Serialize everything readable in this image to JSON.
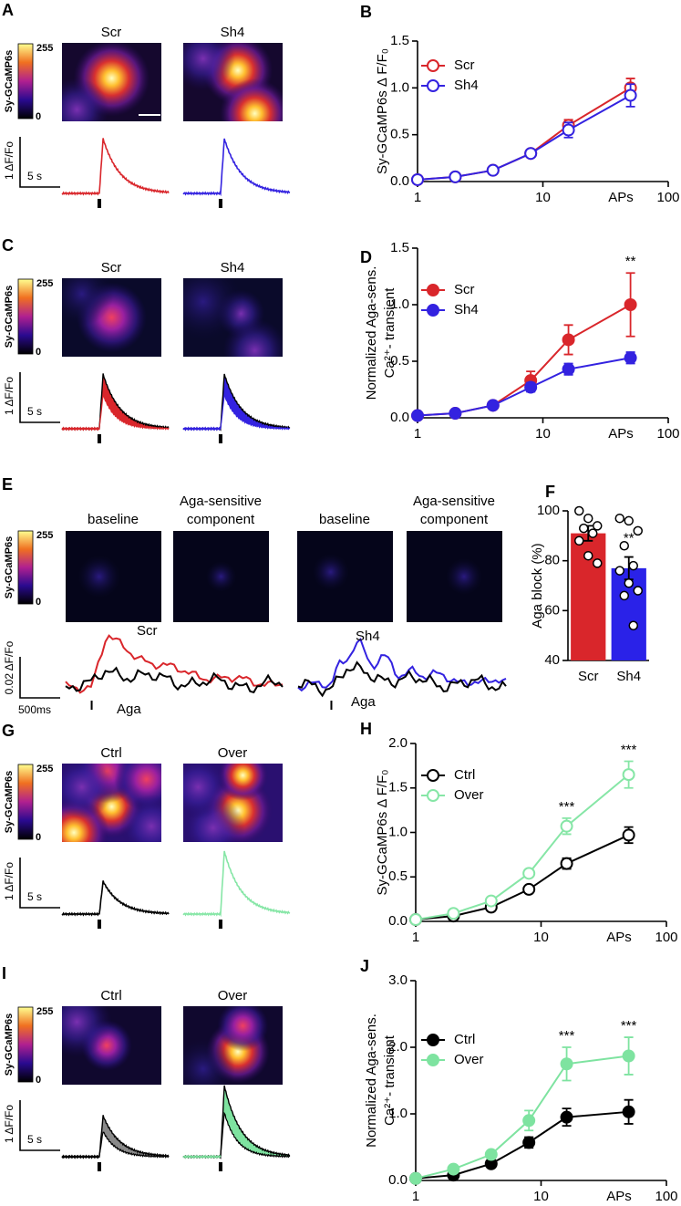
{
  "image_panels": [
    {
      "letter": "A",
      "titles": [
        "Scr",
        "Sh4"
      ],
      "colorbar": {
        "max": "255",
        "min": "0",
        "label": "Sy-GCaMP6s"
      },
      "scalebar": {
        "y": "1 ΔF/Fo",
        "x": "5 s"
      }
    },
    {
      "letter": "C",
      "titles": [
        "Scr",
        "Sh4"
      ],
      "colorbar": {
        "max": "255",
        "min": "0",
        "label": "Sy-GCaMP6s"
      },
      "scalebar": {
        "y": "1 ΔF/Fo",
        "x": "5 s"
      }
    },
    {
      "letter": "E",
      "titles": [
        "baseline",
        "Aga-sensitive component",
        "baseline",
        "Aga-sensitive component"
      ],
      "colorbar": {
        "max": "255",
        "min": "0",
        "label": "Sy-GCaMP6s"
      },
      "scalebar": {
        "y": "0.02 ΔF/Fo",
        "x": "500ms"
      },
      "trace_labels": [
        "Scr",
        "Aga",
        "Sh4",
        "Aga"
      ]
    },
    {
      "letter": "G",
      "titles": [
        "Ctrl",
        "Over"
      ],
      "colorbar": {
        "max": "255",
        "min": "0",
        "label": "Sy-GCaMP6s"
      },
      "scalebar": {
        "y": "1 ΔF/Fo",
        "x": "5 s"
      }
    },
    {
      "letter": "I",
      "titles": [
        "Ctrl",
        "Over"
      ],
      "colorbar": {
        "max": "255",
        "min": "0",
        "label": "Sy-GCaMP6s"
      },
      "scalebar": {
        "y": "1 ΔF/Fo",
        "x": "5 s"
      }
    }
  ],
  "chart_data": [
    {
      "panel": "B",
      "type": "line",
      "xscale": "log",
      "x": [
        1,
        2,
        4,
        8,
        16,
        50
      ],
      "xlim": [
        1,
        100
      ],
      "xticks": [
        1,
        10,
        100
      ],
      "xlabel": "APs",
      "ylabel": "Sy-GCaMP6s Δ F/F₀",
      "ylim": [
        0,
        1.5
      ],
      "yticks": [
        {
          "value": 0,
          "label": "0.0"
        },
        0.5,
        {
          "value": 1,
          "label": "1.0"
        },
        1.5
      ],
      "marker": "open",
      "series": [
        {
          "name": "Scr",
          "color": "#d9262b",
          "values": [
            0.02,
            0.05,
            0.12,
            0.3,
            0.6,
            1.0
          ],
          "errors": [
            0.01,
            0.01,
            0.02,
            0.03,
            0.06,
            0.1
          ]
        },
        {
          "name": "Sh4",
          "color": "#3322e0",
          "values": [
            0.02,
            0.05,
            0.12,
            0.3,
            0.55,
            0.92
          ],
          "errors": [
            0.01,
            0.01,
            0.02,
            0.03,
            0.08,
            0.12
          ]
        }
      ]
    },
    {
      "panel": "D",
      "type": "line",
      "xscale": "log",
      "x": [
        1,
        2,
        4,
        8,
        16,
        50
      ],
      "xlim": [
        1,
        100
      ],
      "xticks": [
        1,
        10,
        100
      ],
      "xlabel": "APs",
      "ylabel": [
        "Normalized Aga-sens.",
        "Ca²⁺- transient"
      ],
      "ylim": [
        0,
        1.5
      ],
      "yticks": [
        {
          "value": 0,
          "label": "0.0"
        },
        0.5,
        {
          "value": 1,
          "label": "1.0"
        },
        1.5
      ],
      "marker": "filled",
      "series": [
        {
          "name": "Scr",
          "color": "#d9262b",
          "values": [
            0.02,
            0.04,
            0.11,
            0.33,
            0.69,
            1.0
          ],
          "errors": [
            0.01,
            0.01,
            0.02,
            0.08,
            0.13,
            0.28
          ]
        },
        {
          "name": "Sh4",
          "color": "#3322e0",
          "values": [
            0.02,
            0.04,
            0.11,
            0.27,
            0.43,
            0.53
          ],
          "errors": [
            0.01,
            0.01,
            0.02,
            0.04,
            0.05,
            0.05
          ]
        }
      ],
      "annotations": [
        {
          "text": "**",
          "x": 50
        }
      ]
    },
    {
      "panel": "F",
      "type": "bar",
      "categories": [
        "Scr",
        "Sh4"
      ],
      "values": [
        91,
        77
      ],
      "errors": [
        3,
        4.5
      ],
      "colors": [
        "#d9262b",
        "#2a22e8"
      ],
      "points": [
        [
          100,
          97,
          94,
          93,
          91,
          88,
          82,
          79
        ],
        [
          97,
          96,
          92,
          86,
          78,
          76,
          71,
          68,
          66,
          54
        ]
      ],
      "ylabel": "Aga block (%)",
      "ylim": [
        40,
        100
      ],
      "yticks": [
        40,
        60,
        80,
        100
      ],
      "annotations": [
        {
          "text": "**",
          "x": "Sh4"
        }
      ]
    },
    {
      "panel": "H",
      "type": "line",
      "xscale": "log",
      "x": [
        1,
        2,
        4,
        8,
        16,
        50
      ],
      "xlim": [
        1,
        100
      ],
      "xticks": [
        1,
        10,
        100
      ],
      "xlabel": "APs",
      "ylabel": "Sy-GCaMP6s Δ F/F₀",
      "ylim": [
        0,
        2
      ],
      "yticks": [
        {
          "value": 0,
          "label": "0.0"
        },
        0.5,
        {
          "value": 1,
          "label": "1.0"
        },
        1.5,
        {
          "value": 2,
          "label": "2.0"
        }
      ],
      "marker": "open",
      "series": [
        {
          "name": "Ctrl",
          "color": "#000000",
          "values": [
            0.02,
            0.06,
            0.16,
            0.36,
            0.65,
            0.97
          ],
          "errors": [
            0.01,
            0.01,
            0.02,
            0.03,
            0.06,
            0.09
          ]
        },
        {
          "name": "Over",
          "color": "#86e6a6",
          "values": [
            0.02,
            0.09,
            0.23,
            0.54,
            1.07,
            1.65
          ],
          "errors": [
            0.01,
            0.01,
            0.02,
            0.04,
            0.09,
            0.15
          ]
        }
      ],
      "annotations": [
        {
          "text": "***",
          "x": 16
        },
        {
          "text": "***",
          "x": 50
        }
      ]
    },
    {
      "panel": "J",
      "type": "line",
      "xscale": "log",
      "x": [
        1,
        2,
        4,
        8,
        16,
        50
      ],
      "xlim": [
        1,
        100
      ],
      "xticks": [
        1,
        10,
        100
      ],
      "xlabel": "APs",
      "ylabel": [
        "Normalized Aga-sens.",
        "Ca²⁺- transient"
      ],
      "ylim": [
        0,
        3
      ],
      "yticks": [
        {
          "value": 0,
          "label": "0.0"
        },
        {
          "value": 1,
          "label": "1.0"
        },
        {
          "value": 2,
          "label": "2.0"
        },
        {
          "value": 3,
          "label": "3.0"
        }
      ],
      "marker": "filled",
      "series": [
        {
          "name": "Ctrl",
          "color": "#000000",
          "values": [
            0.03,
            0.08,
            0.25,
            0.57,
            0.95,
            1.03
          ],
          "errors": [
            0.01,
            0.02,
            0.03,
            0.08,
            0.13,
            0.18
          ]
        },
        {
          "name": "Over",
          "color": "#7ee3a0",
          "values": [
            0.03,
            0.17,
            0.39,
            0.9,
            1.75,
            1.87
          ],
          "errors": [
            0.01,
            0.02,
            0.04,
            0.15,
            0.25,
            0.28
          ]
        }
      ],
      "annotations": [
        {
          "text": "***",
          "x": 16
        },
        {
          "text": "***",
          "x": 50
        }
      ]
    }
  ]
}
